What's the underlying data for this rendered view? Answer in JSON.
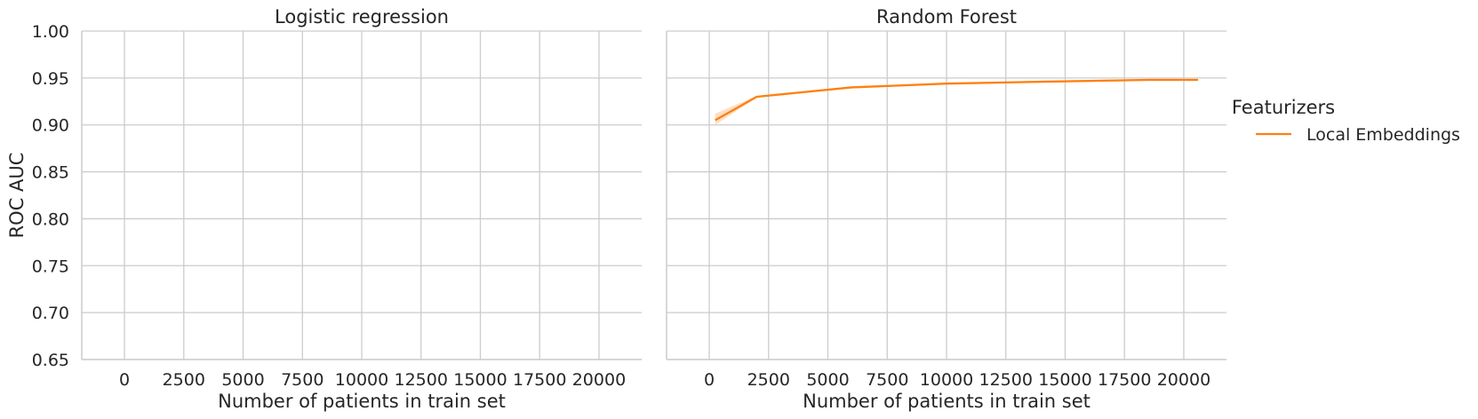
{
  "chart_data": [
    {
      "type": "line",
      "title": "Logistic regression",
      "xlabel": "Number of patients in train set",
      "ylabel": "ROC AUC",
      "xlim": [
        -1800,
        21800
      ],
      "ylim": [
        0.65,
        1.0
      ],
      "xticks": [
        0,
        2500,
        5000,
        7500,
        10000,
        12500,
        15000,
        17500,
        20000
      ],
      "xtick_labels": [
        "0",
        "2500",
        "5000",
        "7500",
        "10000",
        "12500",
        "15000",
        "17500",
        "20000"
      ],
      "yticks": [
        0.65,
        0.7,
        0.75,
        0.8,
        0.85,
        0.9,
        0.95,
        1.0
      ],
      "ytick_labels": [
        "0.65",
        "0.70",
        "0.75",
        "0.80",
        "0.85",
        "0.90",
        "0.95",
        "1.00"
      ],
      "grid": true,
      "series": []
    },
    {
      "type": "line",
      "title": "Random Forest",
      "xlabel": "Number of patients in train set",
      "ylabel": "",
      "xlim": [
        -1800,
        21800
      ],
      "ylim": [
        0.65,
        1.0
      ],
      "xticks": [
        0,
        2500,
        5000,
        7500,
        10000,
        12500,
        15000,
        17500,
        20000
      ],
      "xtick_labels": [
        "0",
        "2500",
        "5000",
        "7500",
        "10000",
        "12500",
        "15000",
        "17500",
        "20000"
      ],
      "yticks": [
        0.65,
        0.7,
        0.75,
        0.8,
        0.85,
        0.9,
        0.95,
        1.0
      ],
      "grid": true,
      "series": [
        {
          "name": "Local Embeddings",
          "color": "#ff7f0e",
          "x": [
            250,
            2000,
            6000,
            10000,
            14000,
            18500,
            20600
          ],
          "y": [
            0.905,
            0.93,
            0.94,
            0.944,
            0.946,
            0.948,
            0.948
          ],
          "ci_lower": [
            0.9,
            0.929,
            0.939,
            0.943,
            0.945,
            0.947,
            0.947
          ],
          "ci_upper": [
            0.912,
            0.931,
            0.941,
            0.945,
            0.947,
            0.949,
            0.949
          ]
        }
      ]
    }
  ],
  "legend": {
    "title": "Featurizers",
    "placement": "right",
    "items": [
      {
        "label": "Local Embeddings",
        "color": "#ff7f0e"
      }
    ]
  }
}
